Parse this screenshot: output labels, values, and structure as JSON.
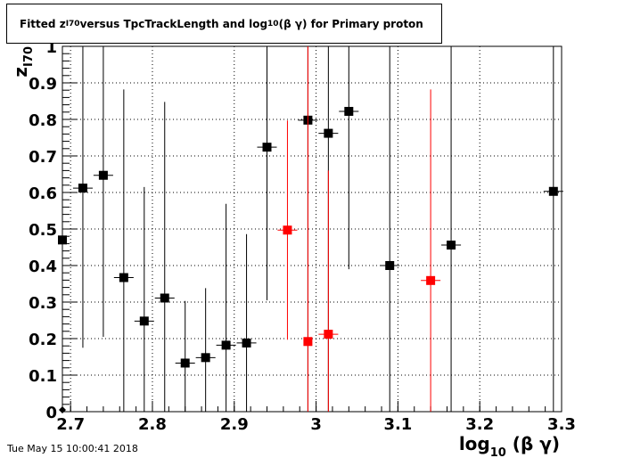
{
  "window_footer": {
    "timestamp": "Tue May 15 10:00:41 2018"
  },
  "title": {
    "prefix": "Fitted  z",
    "sub1": "I70",
    "middle": "  versus TpcTrackLength and log",
    "sub2": "10",
    "suffix": " (β γ) for Primary proton"
  },
  "chart_data": {
    "type": "scatter",
    "title": "Fitted z_I70 versus TpcTrackLength and log10 (β γ) for Primary proton",
    "xlabel": "log10 (β γ)",
    "ylabel": "z_I70",
    "xlim": [
      2.69,
      3.3
    ],
    "ylim": [
      0,
      1
    ],
    "grid": true,
    "x_ticks": [
      "2.7",
      "2.8",
      "2.9",
      "3",
      "3.1",
      "3.2",
      "3.3"
    ],
    "x_tick_values": [
      2.7,
      2.8,
      2.9,
      3.0,
      3.1,
      3.2,
      3.3
    ],
    "y_ticks": [
      "0",
      "0.1",
      "0.2",
      "0.3",
      "0.4",
      "0.5",
      "0.6",
      "0.7",
      "0.8",
      "0.9",
      "1"
    ],
    "y_tick_values": [
      0,
      0.1,
      0.2,
      0.3,
      0.4,
      0.5,
      0.6,
      0.7,
      0.8,
      0.9,
      1.0
    ],
    "series": [
      {
        "color": "#000000",
        "points": [
          {
            "x": 2.69,
            "y": 0.47,
            "xerr": 0.0,
            "ylo": 0.0,
            "yhi": 1.0
          },
          {
            "x": 2.715,
            "y": 0.612,
            "xerr": 0.012,
            "ylo": 0.175,
            "yhi": 1.0
          },
          {
            "x": 2.74,
            "y": 0.647,
            "xerr": 0.012,
            "ylo": 0.205,
            "yhi": 1.0
          },
          {
            "x": 2.765,
            "y": 0.367,
            "xerr": 0.012,
            "ylo": 0.0,
            "yhi": 0.882
          },
          {
            "x": 2.79,
            "y": 0.248,
            "xerr": 0.012,
            "ylo": 0.0,
            "yhi": 0.615
          },
          {
            "x": 2.815,
            "y": 0.311,
            "xerr": 0.012,
            "ylo": 0.0,
            "yhi": 0.848
          },
          {
            "x": 2.84,
            "y": 0.133,
            "xerr": 0.012,
            "ylo": 0.0,
            "yhi": 0.303
          },
          {
            "x": 2.865,
            "y": 0.148,
            "xerr": 0.012,
            "ylo": 0.0,
            "yhi": 0.338
          },
          {
            "x": 2.89,
            "y": 0.182,
            "xerr": 0.012,
            "ylo": 0.0,
            "yhi": 0.569
          },
          {
            "x": 2.915,
            "y": 0.188,
            "xerr": 0.012,
            "ylo": 0.0,
            "yhi": 0.486
          },
          {
            "x": 2.94,
            "y": 0.724,
            "xerr": 0.012,
            "ylo": 0.305,
            "yhi": 1.0
          },
          {
            "x": 2.99,
            "y": 0.798,
            "xerr": 0.012,
            "ylo": 0.0,
            "yhi": 1.0
          },
          {
            "x": 3.015,
            "y": 0.762,
            "xerr": 0.012,
            "ylo": 0.0,
            "yhi": 1.0
          },
          {
            "x": 3.04,
            "y": 0.822,
            "xerr": 0.012,
            "ylo": 0.39,
            "yhi": 1.0
          },
          {
            "x": 3.09,
            "y": 0.4,
            "xerr": 0.012,
            "ylo": 0.0,
            "yhi": 1.0
          },
          {
            "x": 3.165,
            "y": 0.456,
            "xerr": 0.012,
            "ylo": 0.0,
            "yhi": 1.0
          },
          {
            "x": 3.29,
            "y": 0.603,
            "xerr": 0.012,
            "ylo": 0.0,
            "yhi": 1.0
          }
        ]
      },
      {
        "color": "#ff0000",
        "points": [
          {
            "x": 2.965,
            "y": 0.497,
            "xerr": 0.012,
            "ylo": 0.197,
            "yhi": 0.797
          },
          {
            "x": 2.99,
            "y": 0.192,
            "xerr": 0.0,
            "ylo": 0.0,
            "yhi": 1.0
          },
          {
            "x": 3.015,
            "y": 0.212,
            "xerr": 0.012,
            "ylo": 0.0,
            "yhi": 0.66
          },
          {
            "x": 3.14,
            "y": 0.359,
            "xerr": 0.012,
            "ylo": 0.0,
            "yhi": 0.882
          }
        ]
      }
    ],
    "extra_marker": {
      "x": 2.69,
      "y": 0.005
    }
  }
}
